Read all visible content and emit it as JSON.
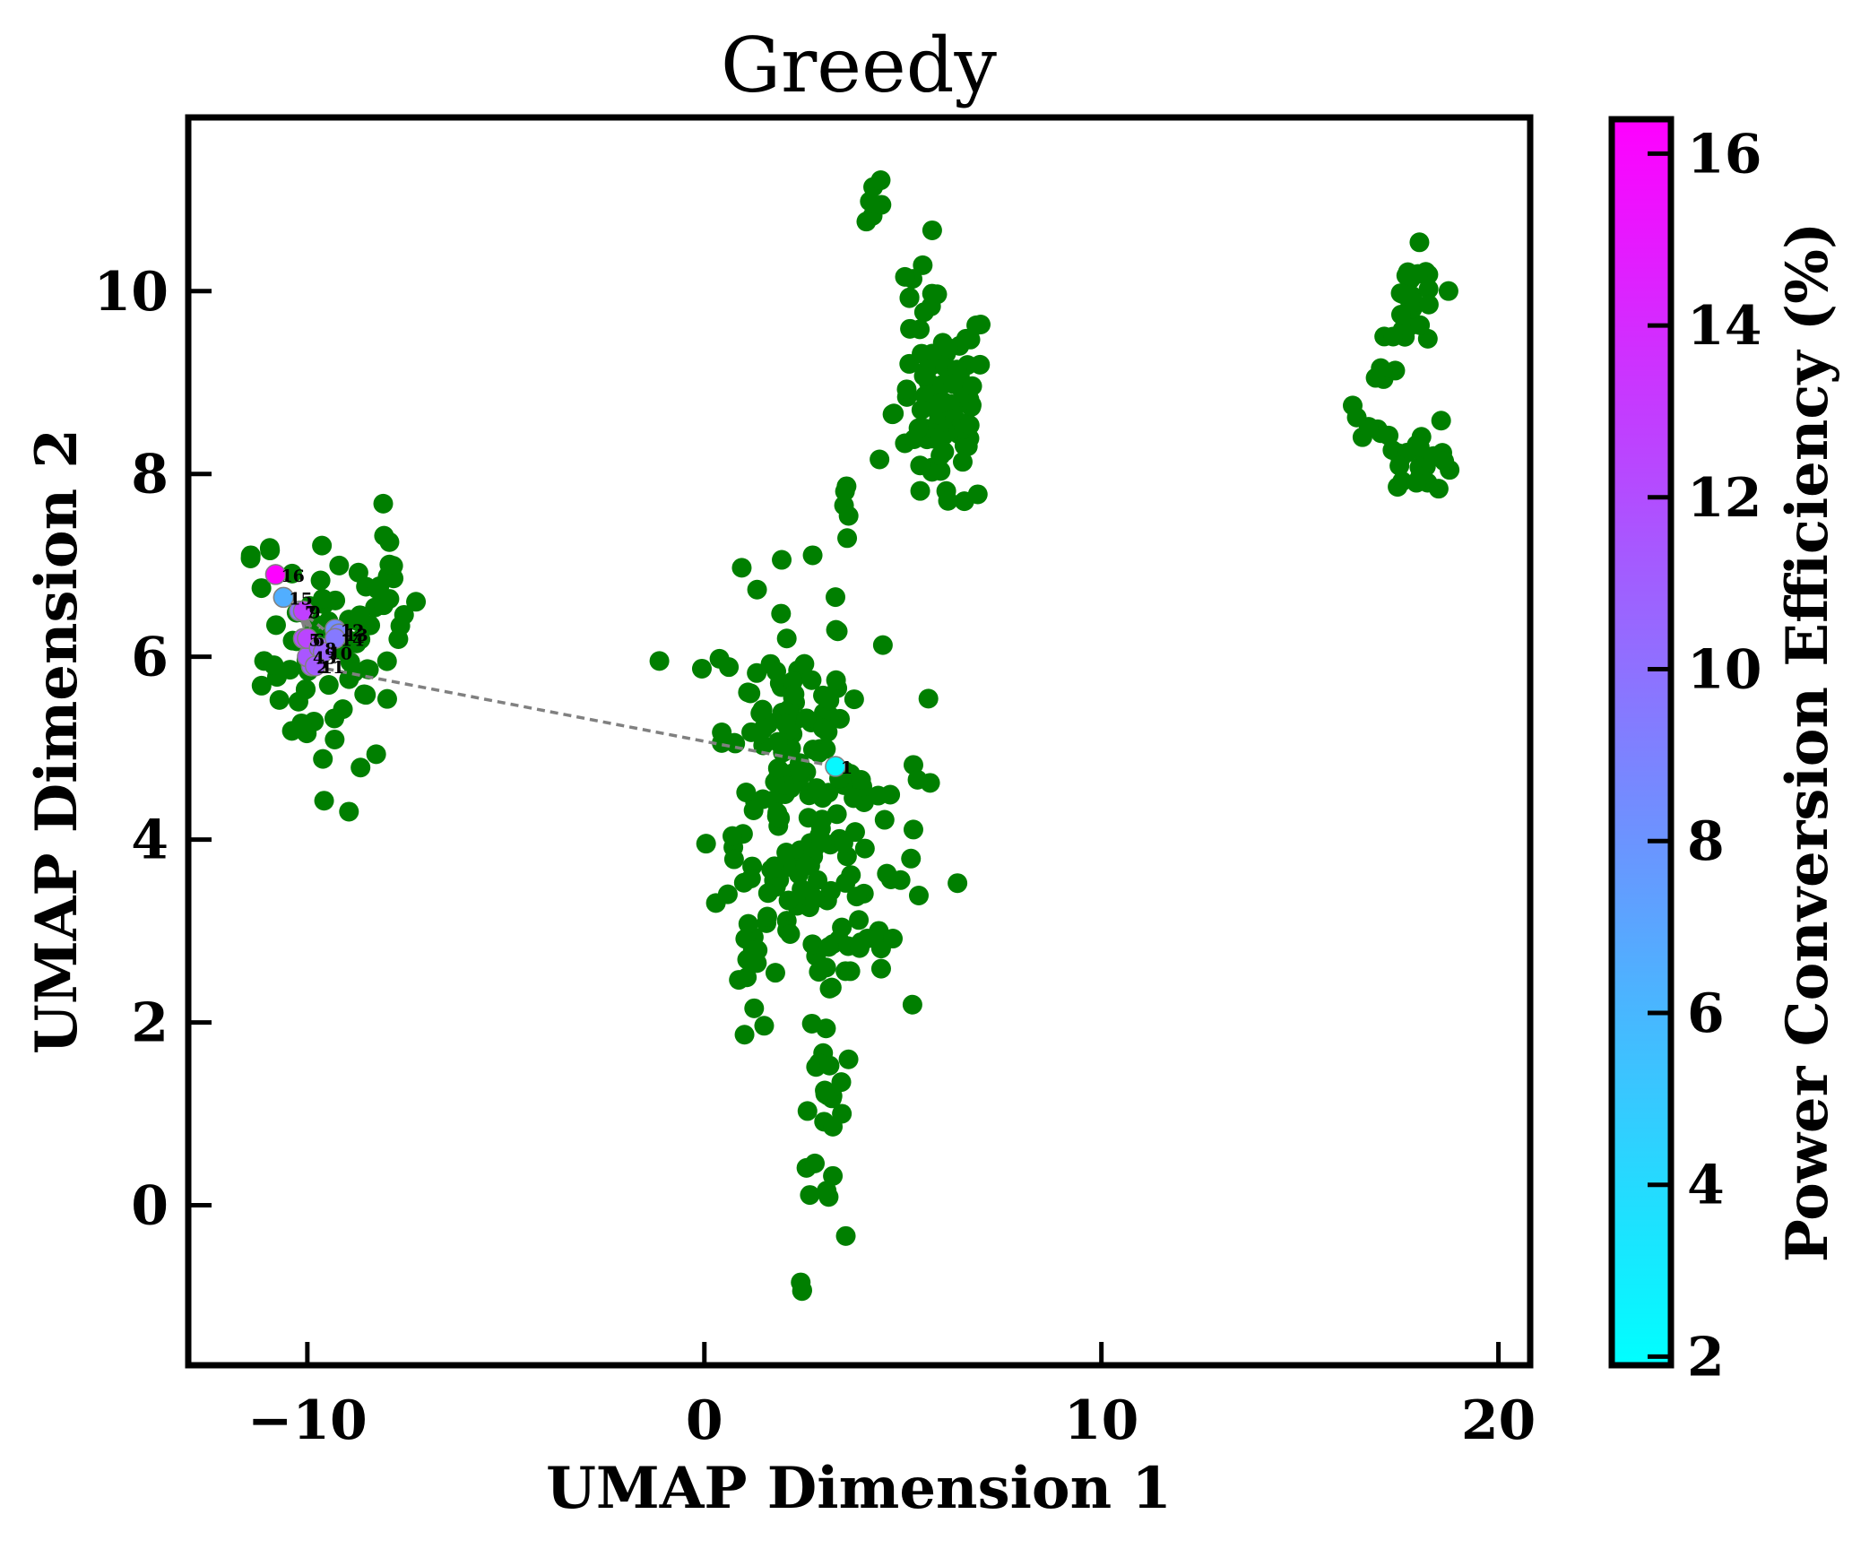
{
  "chart_data": {
    "type": "scatter",
    "title": "Greedy",
    "xlabel": "UMAP Dimension 1",
    "ylabel": "UMAP Dimension 2",
    "xlim": [
      -13,
      20.8
    ],
    "ylim": [
      -1.75,
      11.9
    ],
    "xticks": [
      -10,
      0,
      10,
      20
    ],
    "xtick_labels": [
      "−10",
      "0",
      "10",
      "20"
    ],
    "yticks": [
      0,
      2,
      4,
      6,
      8,
      10
    ],
    "ytick_labels": [
      "0",
      "2",
      "4",
      "6",
      "8",
      "10"
    ],
    "grid": false,
    "colorbar": {
      "label": "Power Conversion Efficiency (%)",
      "range": [
        1.9,
        16.4
      ],
      "ticks": [
        2,
        4,
        6,
        8,
        10,
        12,
        14,
        16
      ],
      "tick_labels": [
        "2",
        "4",
        "6",
        "8",
        "10",
        "12",
        "14",
        "16"
      ],
      "colormap": "cool",
      "colors": [
        "#00ffff",
        "#ff00ff"
      ]
    },
    "background_color": "#007f00",
    "background_clusters": [
      {
        "cx": -9.3,
        "cy": 6.0,
        "sx": 0.9,
        "sy": 0.6,
        "n": 70
      },
      {
        "cx": -7.9,
        "cy": 6.8,
        "sx": 0.3,
        "sy": 0.35,
        "n": 12
      },
      {
        "cx": -11.3,
        "cy": 7.2,
        "sx": 0.3,
        "sy": 0.1,
        "n": 4
      },
      {
        "cx": -9.0,
        "cy": 4.3,
        "sx": 0.05,
        "sy": 0.05,
        "n": 1
      },
      {
        "cx": 2.0,
        "cy": 4.8,
        "sx": 0.9,
        "sy": 1.0,
        "n": 120
      },
      {
        "cx": 3.6,
        "cy": 3.8,
        "sx": 1.0,
        "sy": 1.0,
        "n": 80
      },
      {
        "cx": 1.3,
        "cy": 2.5,
        "sx": 0.3,
        "sy": 0.3,
        "n": 12
      },
      {
        "cx": 3.0,
        "cy": 1.2,
        "sx": 0.25,
        "sy": 0.6,
        "n": 22
      },
      {
        "cx": 2.4,
        "cy": -1.0,
        "sx": 0.1,
        "sy": 0.08,
        "n": 3
      },
      {
        "cx": 3.6,
        "cy": 7.3,
        "sx": 0.15,
        "sy": 0.35,
        "n": 6
      },
      {
        "cx": 4.3,
        "cy": 11.0,
        "sx": 0.15,
        "sy": 0.2,
        "n": 6
      },
      {
        "cx": 6.0,
        "cy": 8.7,
        "sx": 0.6,
        "sy": 0.6,
        "n": 90
      },
      {
        "cx": 5.2,
        "cy": 10.0,
        "sx": 0.2,
        "sy": 0.2,
        "n": 5
      },
      {
        "cx": 17.9,
        "cy": 9.8,
        "sx": 0.35,
        "sy": 0.3,
        "n": 25
      },
      {
        "cx": 18.0,
        "cy": 8.2,
        "sx": 0.5,
        "sy": 0.2,
        "n": 25
      },
      {
        "cx": 17.0,
        "cy": 8.8,
        "sx": 0.3,
        "sy": 0.25,
        "n": 8
      }
    ],
    "sequence": [
      {
        "step": "1",
        "x": 3.3,
        "y": 4.8,
        "pce": 2.3
      },
      {
        "step": "2",
        "x": -9.9,
        "y": 5.9,
        "pce": 11.0
      },
      {
        "step": "3",
        "x": -9.7,
        "y": 6.0,
        "pce": 10.5
      },
      {
        "step": "4",
        "x": -10.0,
        "y": 6.0,
        "pce": 11.5
      },
      {
        "step": "5",
        "x": -10.1,
        "y": 6.2,
        "pce": 12.0
      },
      {
        "step": "6",
        "x": -10.0,
        "y": 6.2,
        "pce": 12.5
      },
      {
        "step": "7",
        "x": -10.2,
        "y": 6.5,
        "pce": 10.0
      },
      {
        "step": "8",
        "x": -9.7,
        "y": 6.1,
        "pce": 11.0
      },
      {
        "step": "9",
        "x": -10.1,
        "y": 6.5,
        "pce": 12.8
      },
      {
        "step": "10",
        "x": -9.6,
        "y": 6.05,
        "pce": 10.8
      },
      {
        "step": "11",
        "x": -9.8,
        "y": 5.9,
        "pce": 11.2
      },
      {
        "step": "12",
        "x": -9.3,
        "y": 6.3,
        "pce": 8.5
      },
      {
        "step": "13",
        "x": -9.2,
        "y": 6.25,
        "pce": 9.0
      },
      {
        "step": "14",
        "x": -9.3,
        "y": 6.2,
        "pce": 9.5
      },
      {
        "step": "15",
        "x": -10.6,
        "y": 6.65,
        "pce": 6.5
      },
      {
        "step": "16",
        "x": -10.8,
        "y": 6.9,
        "pce": 16.3
      }
    ]
  }
}
